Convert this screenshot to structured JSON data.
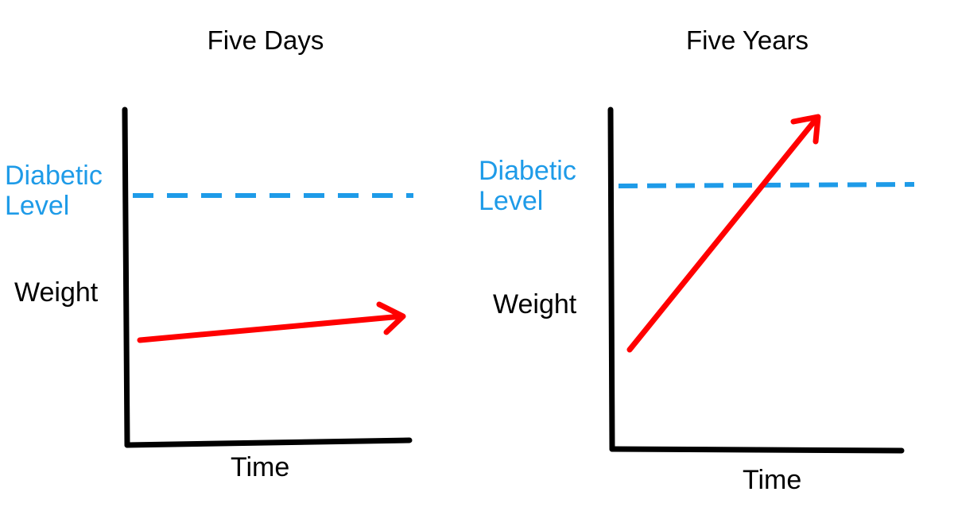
{
  "panels": [
    {
      "title": "Five Days",
      "threshold_label_line1": "Diabetic",
      "threshold_label_line2": "Level",
      "y_label": "Weight",
      "x_label": "Time"
    },
    {
      "title": "Five Years",
      "threshold_label_line1": "Diabetic",
      "threshold_label_line2": "Level",
      "y_label": "Weight",
      "x_label": "Time"
    }
  ],
  "colors": {
    "weight_arrow": "#ff0000",
    "diabetic_line": "#1e9be8",
    "axes": "#000000"
  }
}
